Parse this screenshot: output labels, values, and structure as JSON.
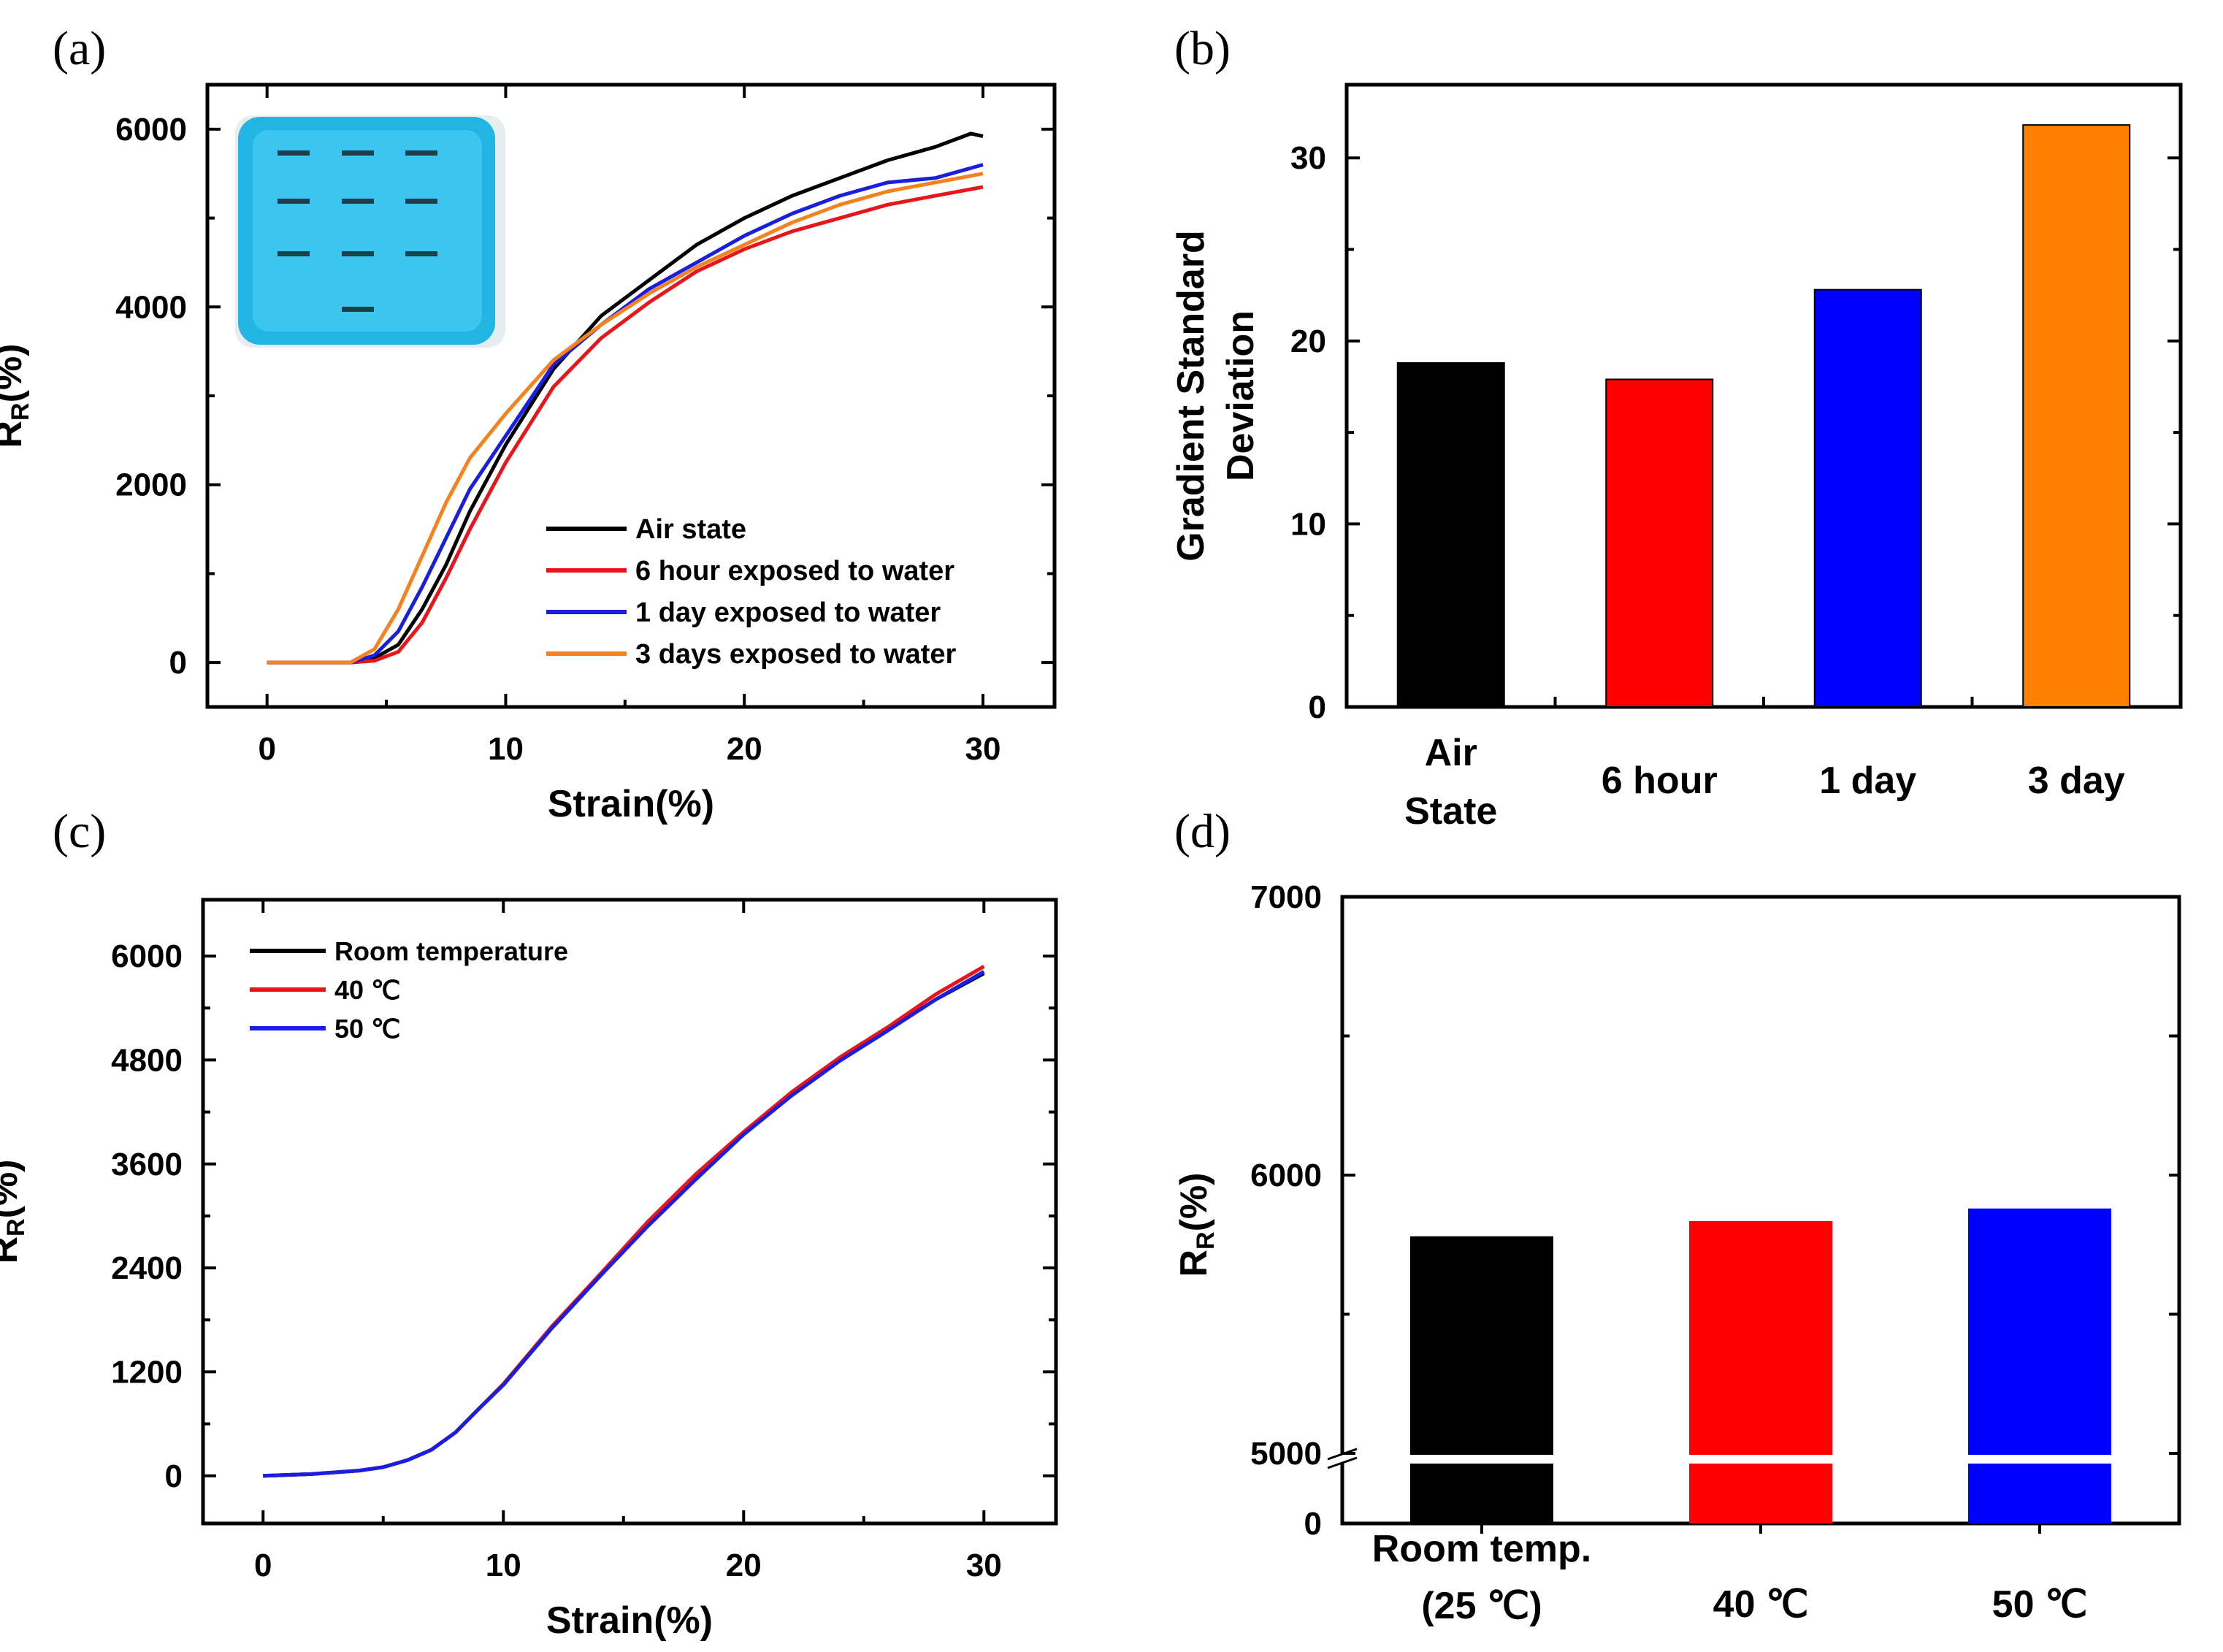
{
  "chart_data": [
    {
      "panel": "(a)",
      "type": "line",
      "xlabel": "Strain(%)",
      "ylabel": "R",
      "ylabel_sub": "R",
      "ylabel_suffix": "(%)",
      "xlim": [
        -2.5,
        33
      ],
      "ylim": [
        -500,
        6500
      ],
      "xticks": [
        0,
        10,
        20,
        30
      ],
      "yticks": [
        0,
        2000,
        4000,
        6000
      ],
      "inset": "photo of blue sample plate with nine dark specimen marks",
      "series": [
        {
          "name": "Air state",
          "color": "#000000",
          "x": [
            0,
            2,
            3.5,
            4.5,
            5.5,
            6.5,
            7.5,
            8.5,
            10,
            12,
            14,
            16,
            18,
            20,
            22,
            24,
            26,
            28,
            29.5,
            30
          ],
          "y": [
            0,
            0,
            0,
            50,
            200,
            600,
            1100,
            1700,
            2450,
            3300,
            3900,
            4300,
            4700,
            5000,
            5250,
            5450,
            5650,
            5800,
            5950,
            5920
          ]
        },
        {
          "name": "6 hour exposed to water",
          "color": "#e8151b",
          "x": [
            0,
            2,
            3.5,
            4.5,
            5.5,
            6.5,
            7.5,
            8.5,
            10,
            12,
            14,
            16,
            18,
            20,
            22,
            24,
            26,
            28,
            30
          ],
          "y": [
            0,
            0,
            0,
            20,
            120,
            450,
            950,
            1500,
            2250,
            3100,
            3650,
            4050,
            4400,
            4650,
            4850,
            5000,
            5150,
            5250,
            5350
          ]
        },
        {
          "name": "1 day exposed to water",
          "color": "#1a1ee0",
          "x": [
            0,
            2,
            3.5,
            4.5,
            5.5,
            6.5,
            7.5,
            8.5,
            10,
            12,
            14,
            16,
            18,
            20,
            22,
            24,
            26,
            28,
            30
          ],
          "y": [
            0,
            0,
            0,
            80,
            350,
            850,
            1400,
            1950,
            2550,
            3350,
            3800,
            4200,
            4500,
            4800,
            5050,
            5250,
            5400,
            5450,
            5600
          ]
        },
        {
          "name": "3 days exposed to water",
          "color": "#f5821f",
          "x": [
            0,
            2,
            3.5,
            4.5,
            5.5,
            6.5,
            7.5,
            8.5,
            10,
            12,
            14,
            16,
            18,
            20,
            22,
            24,
            26,
            28,
            30
          ],
          "y": [
            0,
            0,
            0,
            150,
            600,
            1200,
            1800,
            2300,
            2800,
            3400,
            3800,
            4150,
            4450,
            4700,
            4950,
            5150,
            5300,
            5400,
            5500
          ]
        }
      ]
    },
    {
      "panel": "(b)",
      "type": "bar",
      "ylabel_line1": "Gradient Standard",
      "ylabel_line2": "Deviation",
      "ylim": [
        0,
        34
      ],
      "yticks": [
        0,
        10,
        20,
        30
      ],
      "categories": [
        "Air State",
        "6 hour",
        "1 day",
        "3 day"
      ],
      "category_lines": [
        [
          "Air",
          "State"
        ],
        [
          "6 hour"
        ],
        [
          "1 day"
        ],
        [
          "3 day"
        ]
      ],
      "values": [
        18.8,
        17.9,
        22.8,
        31.8
      ],
      "colors": [
        "#000000",
        "#ff0000",
        "#0000ff",
        "#ff8000"
      ]
    },
    {
      "panel": "(c)",
      "type": "line",
      "xlabel": "Strain(%)",
      "ylabel": "R",
      "ylabel_sub": "R",
      "ylabel_suffix": "(%)",
      "xlim": [
        -2.5,
        33
      ],
      "ylim": [
        -550,
        6650
      ],
      "xticks": [
        0,
        10,
        20,
        30
      ],
      "yticks": [
        0,
        1200,
        2400,
        3600,
        4800,
        6000
      ],
      "ytick_labels": [
        "0",
        "1200",
        "2400",
        "3600",
        "4800",
        "6000"
      ],
      "series": [
        {
          "name": "Room temperature",
          "color": "#000000",
          "x": [
            0,
            2,
            4,
            5,
            6,
            7,
            8,
            9,
            10,
            12,
            14,
            16,
            18,
            20,
            22,
            24,
            26,
            28,
            30
          ],
          "y": [
            0,
            20,
            60,
            100,
            180,
            300,
            500,
            780,
            1050,
            1700,
            2300,
            2900,
            3450,
            3950,
            4400,
            4800,
            5150,
            5500,
            5800
          ]
        },
        {
          "name": "40 ℃",
          "color": "#e8151b",
          "x": [
            0,
            2,
            4,
            5,
            6,
            7,
            8,
            9,
            10,
            12,
            14,
            16,
            18,
            20,
            22,
            24,
            26,
            28,
            30
          ],
          "y": [
            0,
            20,
            60,
            100,
            180,
            300,
            500,
            780,
            1060,
            1720,
            2320,
            2930,
            3480,
            3970,
            4430,
            4830,
            5180,
            5560,
            5880
          ]
        },
        {
          "name": "50 ℃",
          "color": "#1a1ee0",
          "x": [
            0,
            2,
            4,
            5,
            6,
            7,
            8,
            9,
            10,
            12,
            14,
            16,
            18,
            20,
            22,
            24,
            26,
            28,
            30
          ],
          "y": [
            0,
            20,
            60,
            100,
            180,
            300,
            500,
            780,
            1050,
            1700,
            2300,
            2880,
            3420,
            3940,
            4390,
            4790,
            5140,
            5500,
            5820
          ]
        }
      ]
    },
    {
      "panel": "(d)",
      "type": "bar",
      "ylabel": "R",
      "ylabel_sub": "R",
      "ylabel_suffix": "(%)",
      "axis_break": true,
      "lower_range": [
        0,
        5000
      ],
      "upper_range": [
        5000,
        7000
      ],
      "yticks": [
        0,
        5000,
        6000,
        7000
      ],
      "categories": [
        "Room temp. (25 ℃)",
        "40 ℃",
        "50 ℃"
      ],
      "category_lines": [
        [
          "Room temp.",
          "(25 ℃)"
        ],
        [
          "40 ℃"
        ],
        [
          "50 ℃"
        ]
      ],
      "values": [
        5780,
        5835,
        5880
      ],
      "colors": [
        "#000000",
        "#ff0000",
        "#0000ff"
      ]
    }
  ]
}
